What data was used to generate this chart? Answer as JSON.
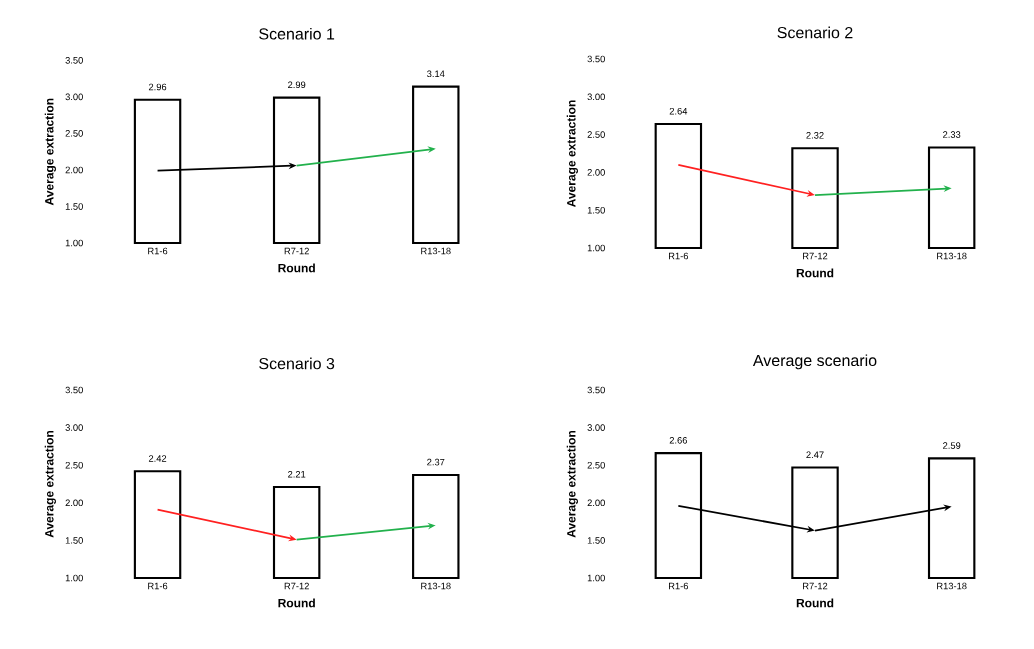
{
  "chart_data": [
    {
      "type": "bar",
      "title": "Scenario 1",
      "xlabel": "Round",
      "ylabel": "Average extraction",
      "categories": [
        "R1-6",
        "R7-12",
        "R13-18"
      ],
      "ylim": [
        1,
        3.5
      ],
      "yticks": [
        {
          "value": 1,
          "label": "1.00"
        },
        {
          "value": 1.5,
          "label": "1.50"
        },
        {
          "value": 2,
          "label": "2.00"
        },
        {
          "value": 2.5,
          "label": "2.50"
        },
        {
          "value": 3,
          "label": "3.00"
        },
        {
          "value": 3.5,
          "label": "3.50"
        }
      ],
      "data_labels": true,
      "series": [
        {
          "color": "#000000",
          "values": [
            2.96,
            2.99,
            3.14
          ]
        }
      ]
    },
    {
      "type": "bar",
      "title": "Scenario 2",
      "xlabel": "Round",
      "ylabel": "Average extraction",
      "categories": [
        "R1-6",
        "R7-12",
        "R13-18"
      ],
      "ylim": [
        1,
        3.5
      ],
      "yticks": [
        {
          "value": 1,
          "label": "1.00"
        },
        {
          "value": 1.5,
          "label": "1.50"
        },
        {
          "value": 2,
          "label": "2.00"
        },
        {
          "value": 2.5,
          "label": "2.50"
        },
        {
          "value": 3,
          "label": "3.00"
        },
        {
          "value": 3.5,
          "label": "3.50"
        }
      ],
      "data_labels": true,
      "series": [
        {
          "color": "#000000",
          "values": [
            2.64,
            2.32,
            2.33
          ]
        }
      ]
    },
    {
      "type": "bar",
      "title": "Scenario 3",
      "xlabel": "Round",
      "ylabel": "Average extraction",
      "categories": [
        "R1-6",
        "R7-12",
        "R13-18"
      ],
      "ylim": [
        1,
        3.5
      ],
      "yticks": [
        {
          "value": 1,
          "label": "1.00"
        },
        {
          "value": 1.5,
          "label": "1.50"
        },
        {
          "value": 2,
          "label": "2.00"
        },
        {
          "value": 2.5,
          "label": "2.50"
        },
        {
          "value": 3,
          "label": "3.00"
        },
        {
          "value": 3.5,
          "label": "3.50"
        }
      ],
      "data_labels": true,
      "series": [
        {
          "color": "#000000",
          "values": [
            2.42,
            2.21,
            2.37
          ]
        }
      ]
    },
    {
      "type": "bar",
      "title": "Average scenario",
      "xlabel": "Round",
      "ylabel": "Average extraction",
      "categories": [
        "R1-6",
        "R7-12",
        "R13-18"
      ],
      "ylim": [
        1,
        3.5
      ],
      "yticks": [
        {
          "value": 1,
          "label": "1.00"
        },
        {
          "value": 1.5,
          "label": "1.50"
        },
        {
          "value": 2,
          "label": "2.00"
        },
        {
          "value": 2.5,
          "label": "2.50"
        },
        {
          "value": 3,
          "label": "3.00"
        },
        {
          "value": 3.5,
          "label": "3.50"
        }
      ],
      "data_labels": true,
      "series": [
        {
          "color": "#000000",
          "values": [
            2.66,
            2.47,
            2.59
          ]
        }
      ]
    }
  ]
}
